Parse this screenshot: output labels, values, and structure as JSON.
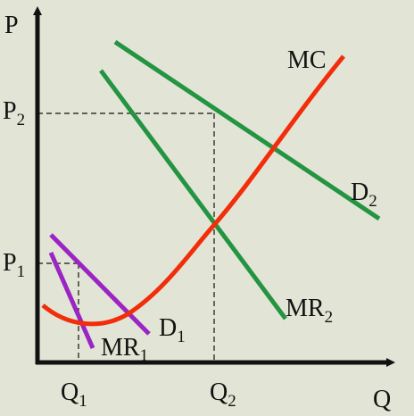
{
  "axes": {
    "y_label": "P",
    "x_label": "Q"
  },
  "price_labels": [
    {
      "base": "P",
      "sub": "2"
    },
    {
      "base": "P",
      "sub": "1"
    }
  ],
  "quantity_labels": [
    {
      "base": "Q",
      "sub": "1"
    },
    {
      "base": "Q",
      "sub": "2"
    }
  ],
  "curve_labels": {
    "mc": {
      "base": "MC",
      "sub": ""
    },
    "d2": {
      "base": "D",
      "sub": "2"
    },
    "mr2": {
      "base": "MR",
      "sub": "2"
    },
    "d1": {
      "base": "D",
      "sub": "1"
    },
    "mr1": {
      "base": "MR",
      "sub": "1"
    }
  },
  "colors": {
    "background": "#e2e5d5",
    "axes": "#111111",
    "mc": "#f22d0b",
    "demand_mr_2": "#249443",
    "demand_mr_1": "#9a25c4",
    "guides": "#111111"
  }
}
